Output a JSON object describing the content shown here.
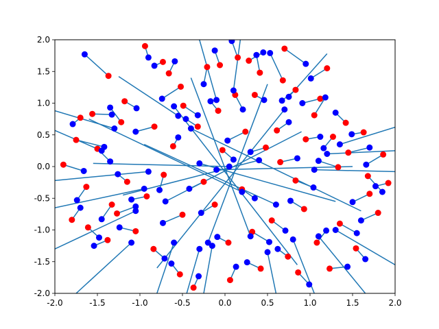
{
  "chart_data": {
    "type": "scatter",
    "title": "",
    "xlabel": "",
    "ylabel": "",
    "xlim": [
      -2.0,
      2.0
    ],
    "ylim": [
      -2.0,
      2.0
    ],
    "grid": false,
    "legend": "none",
    "xticks": [
      "-2.0",
      "-1.5",
      "-1.0",
      "-0.5",
      "0.0",
      "0.5",
      "1.0",
      "1.5",
      "2.0"
    ],
    "yticks": [
      "-2.0",
      "-1.5",
      "-1.0",
      "-0.5",
      "0.0",
      "0.5",
      "1.0",
      "1.5",
      "2.0"
    ],
    "colors": {
      "line": "#1f77b4",
      "start_points": "#ff0000",
      "end_points": "#0000ff"
    },
    "segments": [
      [
        -1.75,
        0.42,
        -1.42,
        0.31
      ],
      [
        -1.37,
        1.43,
        -1.65,
        1.77
      ],
      [
        -0.94,
        1.9,
        -0.9,
        1.72
      ],
      [
        0.7,
        1.86,
        0.95,
        1.62
      ],
      [
        -0.73,
        1.65,
        -0.83,
        1.59
      ],
      [
        0.15,
        1.72,
        0.08,
        1.98
      ],
      [
        1.2,
        1.55,
        1.01,
        1.39
      ],
      [
        -0.21,
        1.57,
        -0.25,
        1.3
      ],
      [
        0.41,
        1.48,
        0.37,
        1.76
      ],
      [
        0.68,
        1.36,
        0.53,
        1.79
      ],
      [
        -1.56,
        0.83,
        -1.33,
        0.82
      ],
      [
        -0.52,
        1.26,
        -0.74,
        1.07
      ],
      [
        -1.18,
        1.03,
        -1.04,
        0.92
      ],
      [
        0.12,
        1.13,
        0.21,
        0.9
      ],
      [
        0.35,
        1.13,
        0.46,
        1.05
      ],
      [
        1.12,
        1.07,
        0.91,
        1.0
      ],
      [
        0.83,
        1.21,
        0.67,
        1.04
      ],
      [
        -1.7,
        0.77,
        -1.79,
        0.67
      ],
      [
        1.42,
        0.69,
        1.3,
        0.85
      ],
      [
        1.63,
        0.54,
        1.49,
        0.51
      ],
      [
        -1.5,
        0.28,
        -1.35,
        0.08
      ],
      [
        -0.83,
        0.63,
        -1.05,
        0.55
      ],
      [
        -0.61,
        0.32,
        -0.55,
        0.46
      ],
      [
        1.27,
        0.47,
        1.16,
        0.29
      ],
      [
        0.61,
        0.57,
        0.75,
        0.7
      ],
      [
        -0.08,
        0.88,
        -0.17,
        1.03
      ],
      [
        0.24,
        0.55,
        0.03,
        0.41
      ],
      [
        -1.9,
        0.03,
        -1.66,
        -0.07
      ],
      [
        -1.63,
        -0.32,
        -1.74,
        -0.53
      ],
      [
        -1.15,
        -0.24,
        -1.26,
        -0.12
      ],
      [
        -0.72,
        -0.13,
        -0.77,
        -0.37
      ],
      [
        1.45,
        0.22,
        1.7,
        0.3
      ],
      [
        1.33,
        -0.01,
        1.1,
        0.09
      ],
      [
        0.83,
        -0.22,
        1.04,
        -0.33
      ],
      [
        1.92,
        -0.26,
        1.77,
        -0.31
      ],
      [
        1.7,
        -0.43,
        1.5,
        -0.56
      ],
      [
        1.8,
        -0.73,
        1.6,
        -0.85
      ],
      [
        -1.33,
        -0.6,
        -1.45,
        -0.83
      ],
      [
        -1.27,
        -0.74,
        -1.05,
        -0.63
      ],
      [
        -0.5,
        -0.76,
        -0.73,
        -0.89
      ],
      [
        -0.12,
        -0.6,
        -0.28,
        -0.73
      ],
      [
        0.55,
        -0.85,
        0.71,
        -1.01
      ],
      [
        0.93,
        -0.67,
        0.77,
        -0.54
      ],
      [
        0.32,
        -1.03,
        0.52,
        -1.19
      ],
      [
        0.04,
        -1.2,
        -0.09,
        -1.11
      ],
      [
        -1.38,
        -1.16,
        -1.54,
        -1.25
      ],
      [
        -0.84,
        -1.3,
        -0.71,
        -1.45
      ],
      [
        -0.53,
        -1.7,
        -0.63,
        -1.53
      ],
      [
        -0.37,
        -1.91,
        -0.31,
        -1.73
      ],
      [
        0.06,
        -1.79,
        0.13,
        -1.58
      ],
      [
        0.42,
        -1.61,
        0.26,
        -1.51
      ],
      [
        0.86,
        -1.67,
        0.99,
        -1.86
      ],
      [
        1.23,
        -1.61,
        1.44,
        -1.58
      ],
      [
        1.08,
        -1.2,
        1.19,
        -1.01
      ],
      [
        1.35,
        -0.9,
        1.55,
        -1.05
      ],
      [
        1.68,
        -0.15,
        1.85,
        -0.4
      ],
      [
        -1.22,
        0.7,
        -1.35,
        0.93
      ],
      [
        -0.49,
        0.96,
        -0.32,
        0.81
      ],
      [
        0.48,
        0.3,
        0.3,
        0.23
      ],
      [
        -0.25,
        -0.24,
        -0.42,
        -0.35
      ],
      [
        0.2,
        -0.36,
        0.35,
        -0.5
      ],
      [
        -0.92,
        -0.47,
        -1.1,
        -0.52
      ],
      [
        0.65,
        0.07,
        0.85,
        0.13
      ],
      [
        -0.03,
        0.26,
        0.1,
        0.11
      ],
      [
        1.05,
        0.81,
        1.18,
        1.09
      ],
      [
        -0.66,
        1.47,
        -0.59,
        1.66
      ],
      [
        0.28,
        1.67,
        0.45,
        1.8
      ],
      [
        -0.06,
        1.6,
        -0.12,
        1.83
      ],
      [
        -1.05,
        -1.02,
        -1.24,
        -0.96
      ],
      [
        0.74,
        -1.42,
        0.62,
        -1.3
      ],
      [
        1.54,
        -1.29,
        1.65,
        -1.46
      ],
      [
        -1.61,
        -0.96,
        -1.48,
        -1.12
      ],
      [
        0.95,
        0.43,
        1.12,
        0.47
      ],
      [
        -0.32,
        0.63,
        -0.46,
        0.75
      ],
      [
        1.86,
        0.19,
        1.66,
        0.03
      ],
      [
        -1.8,
        -0.84,
        -1.7,
        -0.65
      ]
    ],
    "long_lines": [
      [
        -2.0,
        0.88,
        -1.3,
        0.6
      ],
      [
        -2.0,
        0.57,
        -1.45,
        0.25
      ],
      [
        -2.0,
        -0.22,
        -0.9,
        -0.08
      ],
      [
        -2.0,
        -0.65,
        -0.95,
        -0.35
      ],
      [
        -2.0,
        -1.3,
        -1.05,
        -0.7
      ],
      [
        -1.75,
        -2.0,
        -1.1,
        -1.2
      ],
      [
        -0.8,
        -2.0,
        -0.6,
        -1.2
      ],
      [
        -0.45,
        -2.0,
        -0.3,
        -1.3
      ],
      [
        -0.25,
        -2.0,
        -0.15,
        -1.25
      ],
      [
        2.0,
        0.62,
        1.35,
        0.35
      ],
      [
        2.0,
        0.25,
        1.2,
        0.2
      ],
      [
        2.0,
        -0.08,
        1.05,
        -0.05
      ],
      [
        2.0,
        -1.55,
        1.3,
        -1.0
      ],
      [
        1.65,
        -2.0,
        1.1,
        -1.1
      ],
      [
        1.05,
        -2.0,
        0.8,
        -1.15
      ],
      [
        0.6,
        -2.0,
        0.5,
        -1.35
      ],
      [
        -0.3,
        2.0,
        -0.1,
        1.05
      ],
      [
        0.18,
        2.0,
        0.1,
        1.2
      ],
      [
        -1.25,
        1.42,
        -0.55,
        0.8
      ],
      [
        1.2,
        1.78,
        0.75,
        1.1
      ],
      [
        -1.55,
        0.05,
        0.05,
        0.0
      ],
      [
        1.5,
        0.0,
        -0.1,
        -0.05
      ],
      [
        -1.2,
        -0.45,
        0.4,
        0.1
      ],
      [
        1.3,
        -0.55,
        -0.3,
        0.05
      ],
      [
        -0.95,
        0.35,
        0.6,
        -0.6
      ],
      [
        0.9,
        0.55,
        -0.7,
        -0.55
      ],
      [
        -0.4,
        1.4,
        0.3,
        -1.1
      ],
      [
        0.5,
        1.3,
        -0.2,
        -1.2
      ],
      [
        -1.6,
        0.75,
        0.2,
        -0.4
      ],
      [
        1.6,
        -0.7,
        -0.4,
        0.6
      ],
      [
        -0.8,
        -1.6,
        0.7,
        0.9
      ],
      [
        0.85,
        -1.55,
        -0.6,
        0.95
      ]
    ]
  }
}
